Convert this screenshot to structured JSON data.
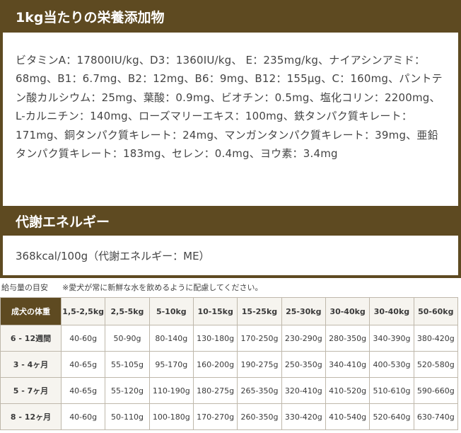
{
  "section1": {
    "title": "1kg当たりの栄養添加物",
    "text": "ビタミンA：17800IU/kg、D3：1360IU/kg、 E：235mg/kg、ナイアシンアミド：68mg、B1：6.7mg、B2：12mg、B6：9mg、B12：155μg、C：160mg、パントテン酸カルシウム：25mg、葉酸：0.9mg、ビオチン：0.5mg、塩化コリン：2200mg、L-カルニチン：140mg、ローズマリーエキス：100mg、鉄タンパク質キレート：171mg、銅タンパク質キレート：24mg、マンガンタンパク質キレート：39mg、亜鉛タンパク質キレート：183mg、セレン：0.4mg、ヨウ素：3.4mg"
  },
  "section2": {
    "title": "代謝エネルギー",
    "text": "368kcal/100g（代謝エネルギー：ME）"
  },
  "feeding": {
    "label": "給与量の目安",
    "note": "※愛犬が常に新鮮な水を飲めるように配慮してください。",
    "corner": "成犬の体重",
    "columns": [
      "1,5-2,5kg",
      "2,5-5kg",
      "5-10kg",
      "10-15kg",
      "15-25kg",
      "25-30kg",
      "30-40kg",
      "30-40kg",
      "50-60kg"
    ],
    "rows": [
      {
        "age": "6 - 12週間",
        "values": [
          "40-60g",
          "50-90g",
          "80-140g",
          "130-180g",
          "170-250g",
          "230-290g",
          "280-350g",
          "340-390g",
          "380-420g"
        ]
      },
      {
        "age": "3 - 4ヶ月",
        "values": [
          "40-65g",
          "55-105g",
          "95-170g",
          "160-200g",
          "190-275g",
          "250-350g",
          "340-410g",
          "400-530g",
          "520-580g"
        ]
      },
      {
        "age": "5 - 7ヶ月",
        "values": [
          "40-65g",
          "55-120g",
          "110-190g",
          "180-275g",
          "265-350g",
          "320-410g",
          "410-520g",
          "510-610g",
          "590-660g"
        ]
      },
      {
        "age": "8 - 12ヶ月",
        "values": [
          "40-60g",
          "50-110g",
          "100-180g",
          "170-270g",
          "260-350g",
          "330-420g",
          "410-540g",
          "520-640g",
          "630-740g"
        ]
      }
    ]
  }
}
